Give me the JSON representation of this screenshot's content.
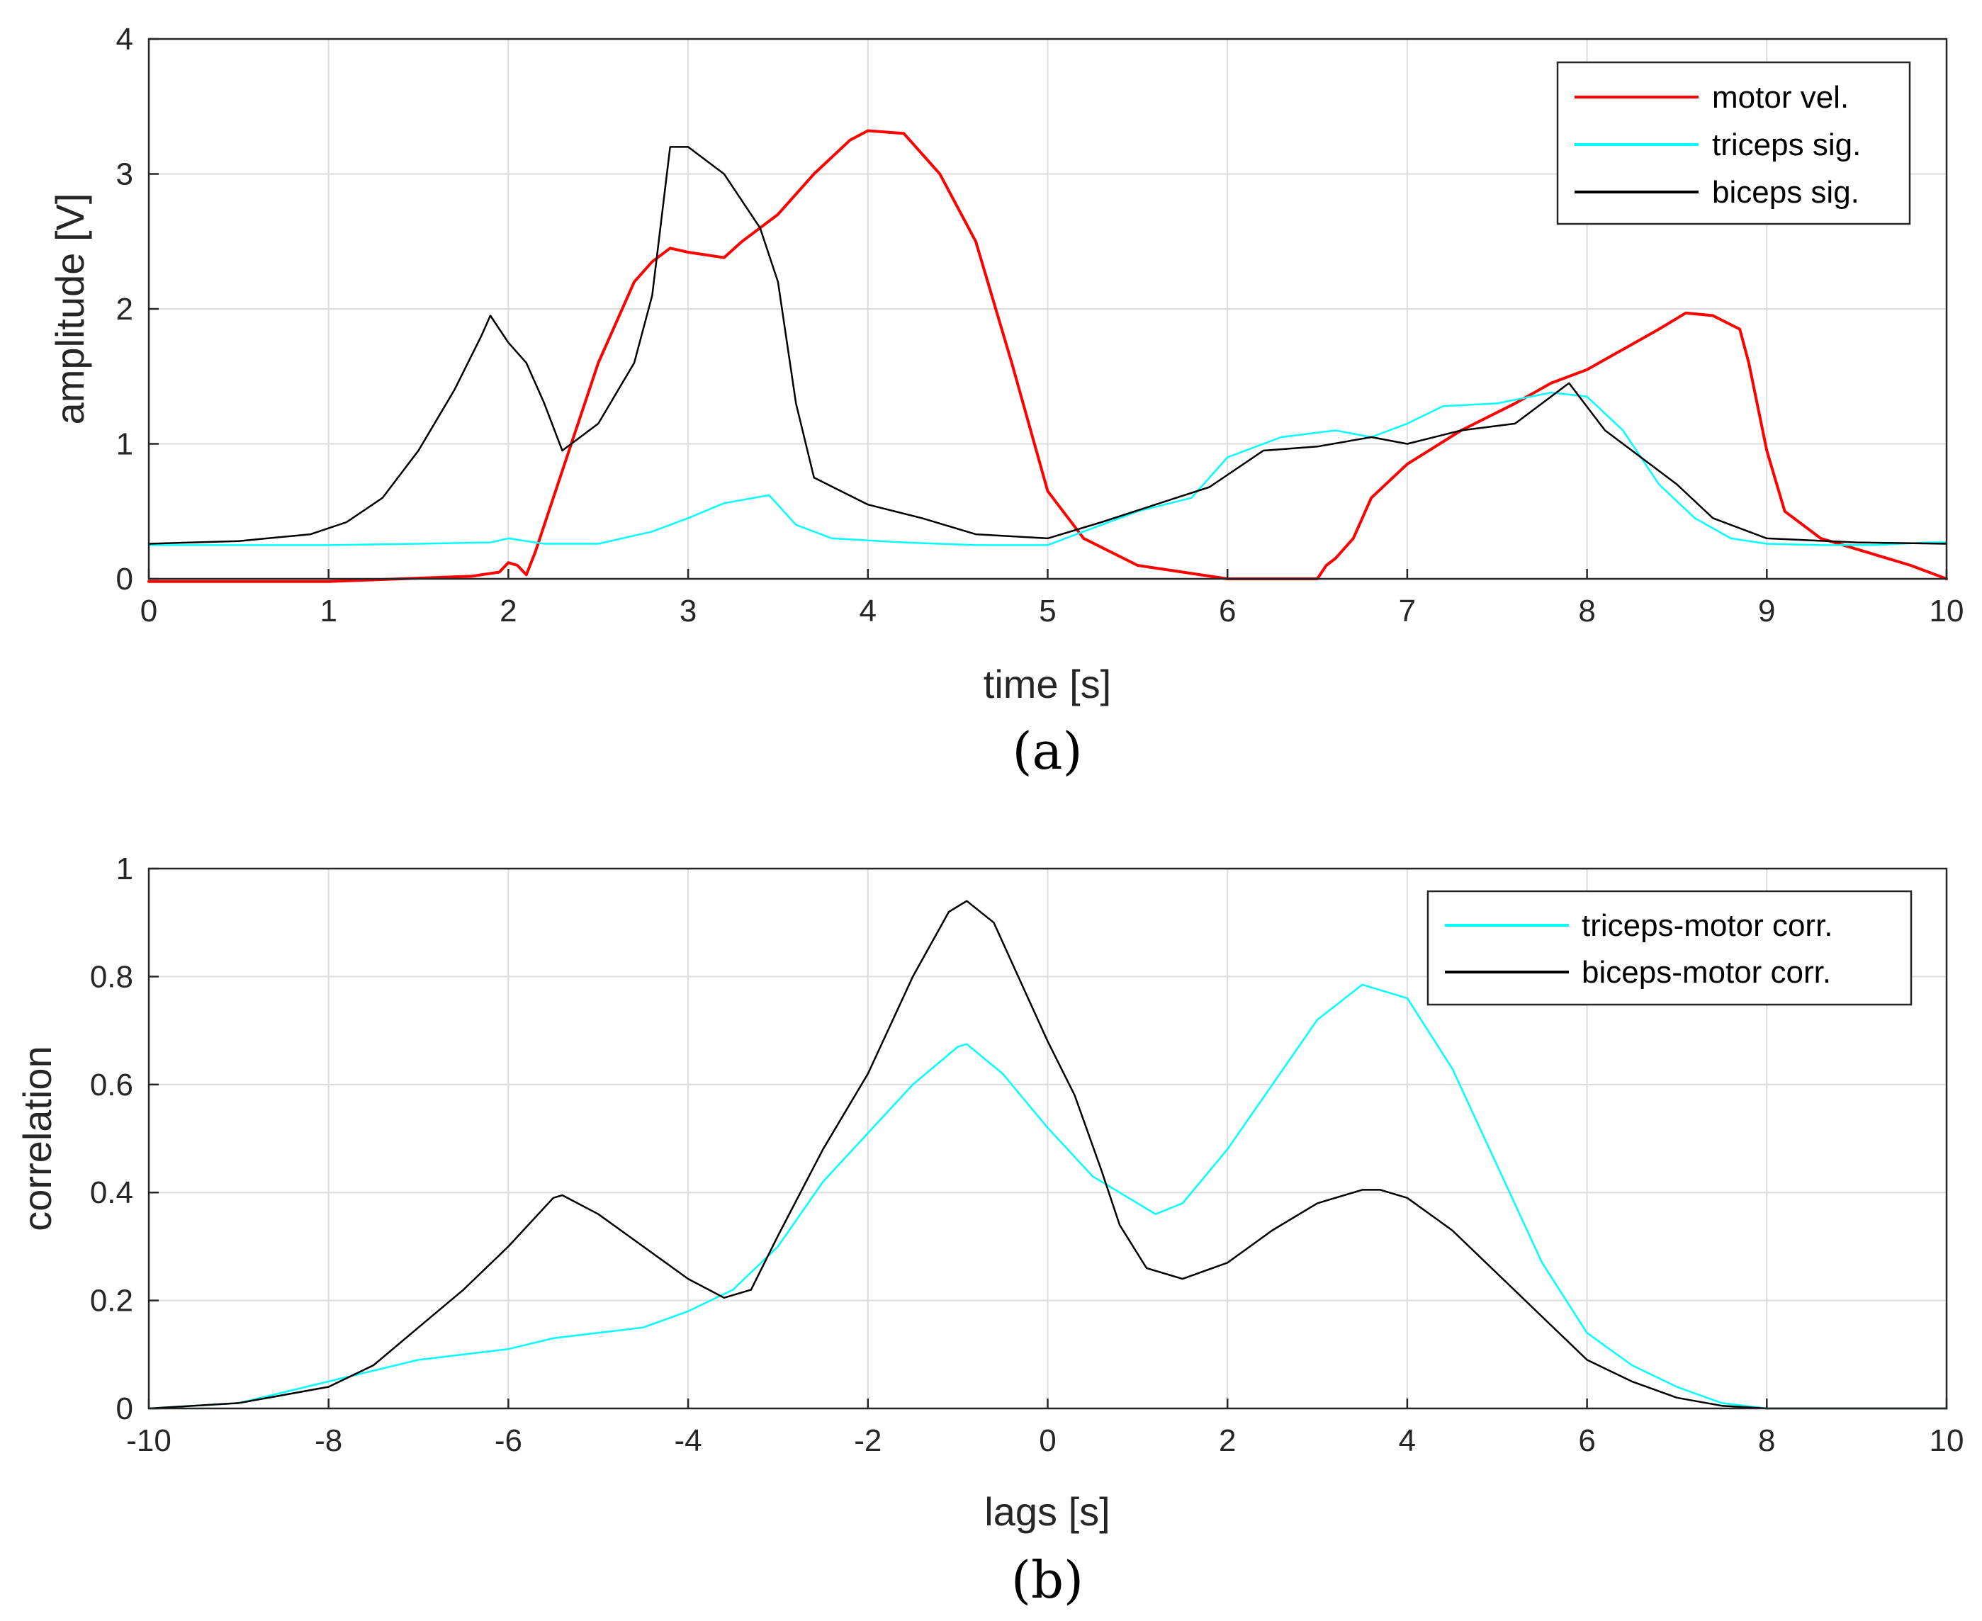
{
  "chart_data": [
    {
      "type": "line",
      "panel_label": "(a)",
      "title": "",
      "xlabel": "time [s]",
      "ylabel": "amplitude [V]",
      "xlim": [
        0,
        10
      ],
      "ylim": [
        0,
        4
      ],
      "xticks": [
        0,
        1,
        2,
        3,
        4,
        5,
        6,
        7,
        8,
        9,
        10
      ],
      "yticks": [
        0,
        1,
        2,
        3,
        4
      ],
      "xtick_labels": [
        "0",
        "1",
        "2",
        "3",
        "4",
        "5",
        "6",
        "7",
        "8",
        "9",
        "10"
      ],
      "ytick_labels": [
        "0",
        "1",
        "2",
        "3",
        "4"
      ],
      "grid": true,
      "legend_position": "top-right",
      "series": [
        {
          "name": "motor vel.",
          "color": "#ff0000",
          "x": [
            0,
            1,
            1.8,
            1.95,
            2.0,
            2.05,
            2.1,
            2.15,
            2.3,
            2.5,
            2.7,
            2.8,
            2.9,
            3.0,
            3.2,
            3.3,
            3.5,
            3.7,
            3.9,
            4.0,
            4.2,
            4.4,
            4.6,
            4.8,
            5.0,
            5.2,
            5.5,
            6.0,
            6.5,
            6.55,
            6.6,
            6.7,
            6.8,
            7.0,
            7.3,
            7.6,
            7.8,
            8.0,
            8.2,
            8.4,
            8.55,
            8.7,
            8.85,
            8.9,
            9.0,
            9.1,
            9.3,
            9.5,
            9.8,
            10.0
          ],
          "y": [
            -0.02,
            -0.02,
            0.02,
            0.05,
            0.12,
            0.1,
            0.03,
            0.2,
            0.8,
            1.6,
            2.2,
            2.35,
            2.45,
            2.42,
            2.38,
            2.5,
            2.7,
            3.0,
            3.25,
            3.32,
            3.3,
            3.0,
            2.5,
            1.6,
            0.65,
            0.3,
            0.1,
            0.0,
            0.0,
            0.1,
            0.15,
            0.3,
            0.6,
            0.85,
            1.1,
            1.3,
            1.45,
            1.55,
            1.7,
            1.85,
            1.97,
            1.95,
            1.85,
            1.6,
            0.95,
            0.5,
            0.3,
            0.22,
            0.1,
            0.0
          ]
        },
        {
          "name": "triceps sig.",
          "color": "#00ffff",
          "x": [
            0,
            0.5,
            1.0,
            1.5,
            1.9,
            2.0,
            2.2,
            2.5,
            2.8,
            3.0,
            3.2,
            3.45,
            3.6,
            3.8,
            4.2,
            4.6,
            5.0,
            5.2,
            5.5,
            5.8,
            6.0,
            6.3,
            6.6,
            6.8,
            7.0,
            7.2,
            7.5,
            7.8,
            8.0,
            8.2,
            8.4,
            8.6,
            8.8,
            9.0,
            9.3,
            9.6,
            9.9,
            10.0
          ],
          "y": [
            0.25,
            0.25,
            0.25,
            0.26,
            0.27,
            0.3,
            0.26,
            0.26,
            0.35,
            0.45,
            0.56,
            0.62,
            0.4,
            0.3,
            0.27,
            0.25,
            0.25,
            0.35,
            0.5,
            0.6,
            0.9,
            1.05,
            1.1,
            1.05,
            1.15,
            1.28,
            1.3,
            1.38,
            1.35,
            1.1,
            0.7,
            0.45,
            0.3,
            0.26,
            0.25,
            0.25,
            0.27,
            0.27
          ]
        },
        {
          "name": "biceps sig.",
          "color": "#000000",
          "x": [
            0,
            0.5,
            0.9,
            1.1,
            1.3,
            1.5,
            1.7,
            1.85,
            1.9,
            2.0,
            2.1,
            2.2,
            2.3,
            2.5,
            2.7,
            2.8,
            2.9,
            3.0,
            3.2,
            3.4,
            3.5,
            3.6,
            3.7,
            4.0,
            4.3,
            4.6,
            5.0,
            5.3,
            5.6,
            5.9,
            6.2,
            6.5,
            6.8,
            7.0,
            7.3,
            7.6,
            7.9,
            8.1,
            8.3,
            8.5,
            8.7,
            9.0,
            9.5,
            10.0
          ],
          "y": [
            0.26,
            0.28,
            0.33,
            0.42,
            0.6,
            0.95,
            1.4,
            1.8,
            1.95,
            1.75,
            1.6,
            1.3,
            0.95,
            1.15,
            1.6,
            2.1,
            3.2,
            3.2,
            3.0,
            2.6,
            2.2,
            1.3,
            0.75,
            0.55,
            0.45,
            0.33,
            0.3,
            0.42,
            0.55,
            0.68,
            0.95,
            0.98,
            1.05,
            1.0,
            1.1,
            1.15,
            1.45,
            1.1,
            0.9,
            0.7,
            0.45,
            0.3,
            0.27,
            0.26
          ]
        }
      ]
    },
    {
      "type": "line",
      "panel_label": "(b)",
      "title": "",
      "xlabel": "lags [s]",
      "ylabel": "correlation",
      "xlim": [
        -10,
        10
      ],
      "ylim": [
        0,
        1
      ],
      "xticks": [
        -10,
        -8,
        -6,
        -4,
        -2,
        0,
        2,
        4,
        6,
        8,
        10
      ],
      "yticks": [
        0,
        0.2,
        0.4,
        0.6,
        0.8,
        1
      ],
      "xtick_labels": [
        "-10",
        "-8",
        "-6",
        "-4",
        "-2",
        "0",
        "2",
        "4",
        "6",
        "8",
        "10"
      ],
      "ytick_labels": [
        "0",
        "0.2",
        "0.4",
        "0.6",
        "0.8",
        "1"
      ],
      "grid": true,
      "legend_position": "top-right",
      "series": [
        {
          "name": "triceps-motor corr.",
          "color": "#00ffff",
          "x": [
            -10,
            -9,
            -8,
            -7,
            -6.5,
            -6,
            -5.5,
            -5,
            -4.5,
            -4,
            -3.5,
            -3,
            -2.5,
            -2,
            -1.5,
            -1,
            -0.9,
            -0.5,
            0,
            0.5,
            1,
            1.2,
            1.5,
            2,
            2.5,
            3,
            3.5,
            4,
            4.5,
            5,
            5.5,
            6,
            6.5,
            7,
            7.5,
            8,
            9,
            10
          ],
          "y": [
            0,
            0.01,
            0.05,
            0.09,
            0.1,
            0.11,
            0.13,
            0.14,
            0.15,
            0.18,
            0.22,
            0.3,
            0.42,
            0.51,
            0.6,
            0.67,
            0.675,
            0.62,
            0.52,
            0.43,
            0.38,
            0.36,
            0.38,
            0.48,
            0.6,
            0.72,
            0.785,
            0.76,
            0.63,
            0.45,
            0.27,
            0.14,
            0.08,
            0.04,
            0.01,
            0,
            0,
            0
          ]
        },
        {
          "name": "biceps-motor corr.",
          "color": "#000000",
          "x": [
            -10,
            -9,
            -8,
            -7.5,
            -7,
            -6.5,
            -6,
            -5.5,
            -5.4,
            -5,
            -4.5,
            -4,
            -3.6,
            -3.3,
            -3,
            -2.5,
            -2,
            -1.5,
            -1.1,
            -0.9,
            -0.6,
            -0.3,
            0,
            0.3,
            0.6,
            0.8,
            1.1,
            1.5,
            2,
            2.5,
            3,
            3.5,
            3.7,
            4,
            4.5,
            5,
            5.5,
            6,
            6.5,
            7,
            7.5,
            8,
            9,
            10
          ],
          "y": [
            0,
            0.01,
            0.04,
            0.08,
            0.15,
            0.22,
            0.3,
            0.39,
            0.395,
            0.36,
            0.3,
            0.24,
            0.205,
            0.22,
            0.32,
            0.48,
            0.62,
            0.8,
            0.92,
            0.94,
            0.9,
            0.79,
            0.68,
            0.58,
            0.44,
            0.34,
            0.26,
            0.24,
            0.27,
            0.33,
            0.38,
            0.405,
            0.405,
            0.39,
            0.33,
            0.25,
            0.17,
            0.09,
            0.05,
            0.02,
            0.005,
            0,
            0,
            0
          ]
        }
      ]
    }
  ]
}
